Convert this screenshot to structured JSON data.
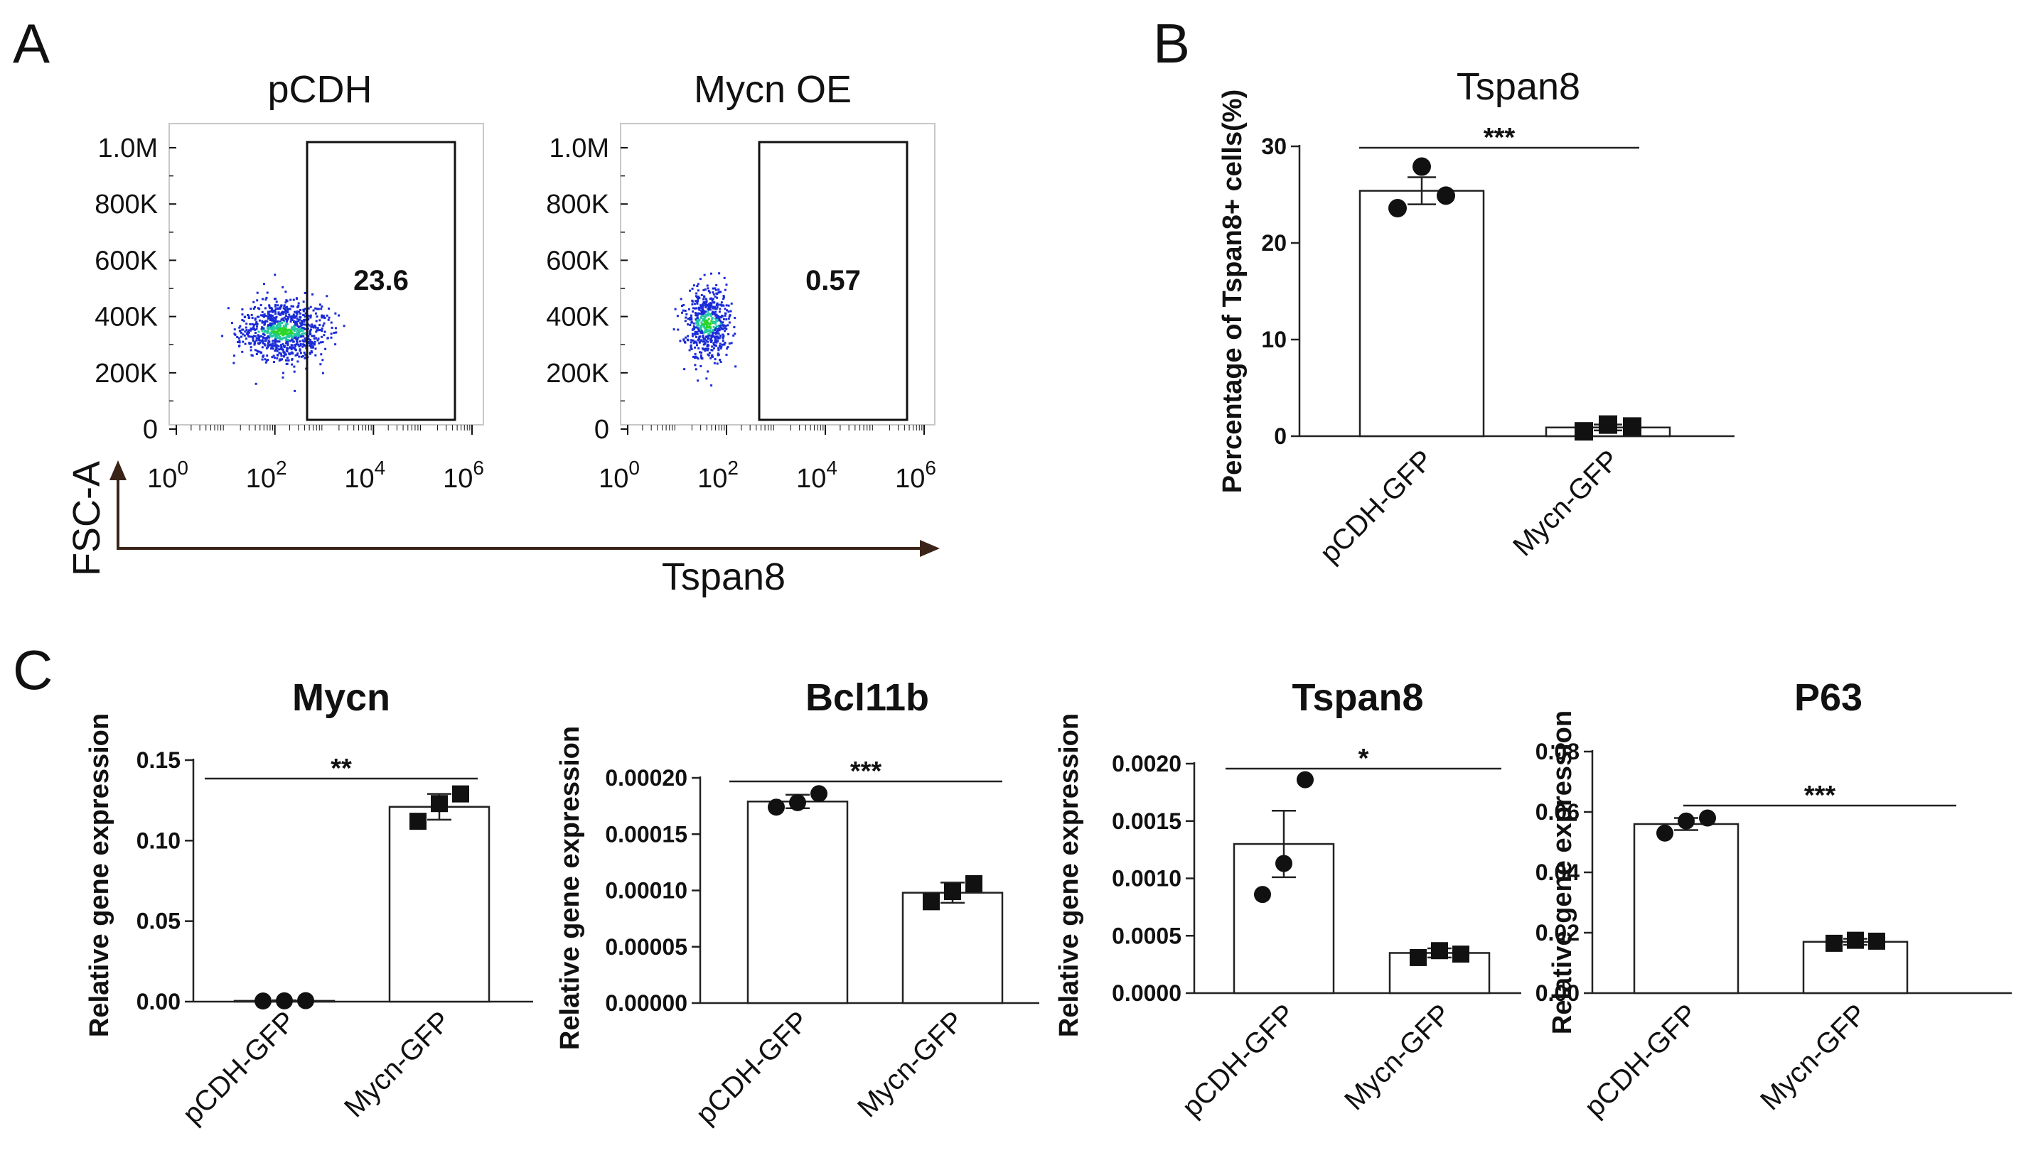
{
  "panels": {
    "a": "A",
    "b": "B",
    "c": "C"
  },
  "flow": {
    "plots": [
      {
        "title": "pCDH",
        "gate_value": "23.6",
        "x_ticks": [
          {
            "base": "10",
            "exp": "0"
          },
          {
            "base": "10",
            "exp": "2"
          },
          {
            "base": "10",
            "exp": "4"
          },
          {
            "base": "10",
            "exp": "6"
          }
        ],
        "y_ticks": [
          "1.0M",
          "800K",
          "600K",
          "400K",
          "200K",
          "0"
        ],
        "cloud": {
          "x_center": 2.15,
          "x_spread": 0.75,
          "y_center": 350000,
          "y_spread": 55000
        }
      },
      {
        "title": "Mycn OE",
        "gate_value": "0.57",
        "x_ticks": [
          {
            "base": "10",
            "exp": "0"
          },
          {
            "base": "10",
            "exp": "2"
          },
          {
            "base": "10",
            "exp": "4"
          },
          {
            "base": "10",
            "exp": "6"
          }
        ],
        "y_ticks": [
          "1.0M",
          "800K",
          "600K",
          "400K",
          "200K",
          "0"
        ],
        "cloud": {
          "x_center": 1.6,
          "x_spread": 0.4,
          "y_center": 380000,
          "y_spread": 65000
        }
      }
    ],
    "y_axis_label": "FSC-A",
    "x_axis_label": "Tspan8",
    "colors": {
      "dots": "#1a2bd8",
      "dense": "#22c8a0",
      "hot": "#2bd62b"
    }
  },
  "chart_data": [
    {
      "panel": "B",
      "type": "bar",
      "title": "Tspan8",
      "xlabel": "",
      "ylabel": "Percentage of Tspan8+ cells(%)",
      "ylim": [
        0,
        30
      ],
      "yticks": [
        "0",
        "10",
        "20",
        "30"
      ],
      "categories": [
        "pCDH-GFP",
        "Mycn-GFP"
      ],
      "values": [
        25.4,
        0.9
      ],
      "errors": [
        1.4,
        0.3
      ],
      "points": [
        [
          23.6,
          27.9,
          24.9
        ],
        [
          0.5,
          1.2,
          1.0
        ]
      ],
      "markers": [
        "circle",
        "square"
      ],
      "significance": "***"
    },
    {
      "panel": "C",
      "type": "bar",
      "title": "Mycn",
      "xlabel": "",
      "ylabel": "Relative gene expression",
      "ylim": [
        0,
        0.15
      ],
      "yticks": [
        "0.00",
        "0.05",
        "0.10",
        "0.15"
      ],
      "categories": [
        "pCDH-GFP",
        "Mycn-GFP"
      ],
      "values": [
        0.0005,
        0.121
      ],
      "errors": [
        0.0003,
        0.008
      ],
      "points": [
        [
          0.0004,
          0.0005,
          0.0006
        ],
        [
          0.112,
          0.123,
          0.129
        ]
      ],
      "markers": [
        "circle",
        "square"
      ],
      "significance": "**"
    },
    {
      "panel": "C",
      "type": "bar",
      "title": "Bcl11b",
      "xlabel": "",
      "ylabel": "Relative gene expression",
      "ylim": [
        0,
        0.0002
      ],
      "yticks": [
        "0.00000",
        "0.00005",
        "0.00010",
        "0.00015",
        "0.00020"
      ],
      "categories": [
        "pCDH-GFP",
        "Mycn-GFP"
      ],
      "values": [
        0.000179,
        9.8e-05
      ],
      "errors": [
        6e-06,
        9e-06
      ],
      "points": [
        [
          0.000174,
          0.000178,
          0.000186
        ],
        [
          9e-05,
          9.9e-05,
          0.000106
        ]
      ],
      "markers": [
        "circle",
        "square"
      ],
      "significance": "***"
    },
    {
      "panel": "C",
      "type": "bar",
      "title": "Tspan8",
      "xlabel": "",
      "ylabel": "Relative gene expression",
      "ylim": [
        0,
        0.002
      ],
      "yticks": [
        "0.0000",
        "0.0005",
        "0.0010",
        "0.0015",
        "0.0020"
      ],
      "categories": [
        "pCDH-GFP",
        "Mycn-GFP"
      ],
      "values": [
        0.0013,
        0.00035
      ],
      "errors": [
        0.00029,
        4e-05
      ],
      "points": [
        [
          0.00086,
          0.00113,
          0.00186
        ],
        [
          0.00031,
          0.00037,
          0.00034
        ]
      ],
      "markers": [
        "circle",
        "square"
      ],
      "significance": "*"
    },
    {
      "panel": "C",
      "type": "bar",
      "title": "P63",
      "xlabel": "",
      "ylabel": "Relative gene expression",
      "ylim": [
        0,
        0.08
      ],
      "yticks": [
        "0.00",
        "0.02",
        "0.04",
        "0.06",
        "0.08"
      ],
      "categories": [
        "pCDH-GFP",
        "Mycn-GFP"
      ],
      "values": [
        0.056,
        0.017
      ],
      "errors": [
        0.002,
        0.001
      ],
      "points": [
        [
          0.053,
          0.057,
          0.058
        ],
        [
          0.0165,
          0.0175,
          0.0172
        ]
      ],
      "markers": [
        "circle",
        "square"
      ],
      "significance": "***"
    }
  ]
}
